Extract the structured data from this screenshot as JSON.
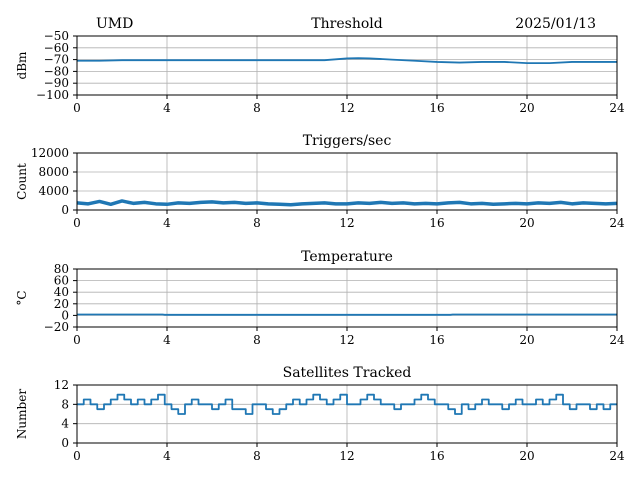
{
  "header": {
    "site": "UMD",
    "date": "2025/01/13"
  },
  "colors": {
    "series": "#1f77b4",
    "grid": "#b0b0b0",
    "axis": "#000000"
  },
  "chart_data": [
    {
      "type": "line",
      "title": "Threshold",
      "xlabel": "",
      "ylabel": "dBm",
      "xlim": [
        0,
        24
      ],
      "ylim": [
        -100,
        -50
      ],
      "xticks": [
        0,
        4,
        8,
        12,
        16,
        20,
        24
      ],
      "yticks": [
        -50,
        -60,
        -70,
        -80,
        -90,
        -100
      ],
      "ytick_labels": [
        "−50",
        "−60",
        "−70",
        "−80",
        "−90",
        "−100"
      ],
      "grid": true,
      "series": [
        {
          "x": [
            0,
            1,
            2,
            3,
            4,
            5,
            6,
            7,
            8,
            9,
            10,
            11,
            12,
            12.5,
            13,
            14,
            15,
            16,
            17,
            18,
            19,
            20,
            21,
            22,
            23,
            24
          ],
          "values": [
            -71,
            -71,
            -70.5,
            -70.5,
            -70.5,
            -70.5,
            -70.5,
            -70.5,
            -70.5,
            -70.5,
            -70.5,
            -70.5,
            -69,
            -68.8,
            -69,
            -70,
            -71,
            -72,
            -72.5,
            -72,
            -72,
            -73,
            -73,
            -72,
            -72,
            -72
          ]
        }
      ]
    },
    {
      "type": "line",
      "title": "Triggers/sec",
      "xlabel": "",
      "ylabel": "Count",
      "xlim": [
        0,
        24
      ],
      "ylim": [
        0,
        12000
      ],
      "xticks": [
        0,
        4,
        8,
        12,
        16,
        20,
        24
      ],
      "yticks": [
        0,
        4000,
        8000,
        12000
      ],
      "ytick_labels": [
        "0",
        "4000",
        "8000",
        "12000"
      ],
      "grid": true,
      "series": [
        {
          "x": [
            0,
            0.5,
            1,
            1.5,
            2,
            2.5,
            3,
            3.5,
            4,
            4.5,
            5,
            5.5,
            6,
            6.5,
            7,
            7.5,
            8,
            8.5,
            9,
            9.5,
            10,
            10.5,
            11,
            11.5,
            12,
            12.5,
            13,
            13.5,
            14,
            14.5,
            15,
            15.5,
            16,
            16.5,
            17,
            17.5,
            18,
            18.5,
            19,
            19.5,
            20,
            20.5,
            21,
            21.5,
            22,
            22.5,
            23,
            23.5,
            24
          ],
          "values": [
            1500,
            1300,
            1800,
            1200,
            1900,
            1400,
            1600,
            1300,
            1200,
            1500,
            1400,
            1600,
            1700,
            1500,
            1600,
            1400,
            1500,
            1300,
            1200,
            1100,
            1300,
            1400,
            1500,
            1300,
            1300,
            1500,
            1400,
            1600,
            1400,
            1500,
            1300,
            1400,
            1300,
            1500,
            1600,
            1300,
            1400,
            1200,
            1300,
            1400,
            1300,
            1500,
            1400,
            1600,
            1300,
            1500,
            1400,
            1300,
            1400
          ]
        }
      ]
    },
    {
      "type": "line",
      "title": "Temperature",
      "xlabel": "",
      "ylabel": "°C",
      "xlim": [
        0,
        24
      ],
      "ylim": [
        -20,
        80
      ],
      "xticks": [
        0,
        4,
        8,
        12,
        16,
        20,
        24
      ],
      "yticks": [
        -20,
        0,
        20,
        40,
        60,
        80
      ],
      "ytick_labels": [
        "−20",
        "0",
        "20",
        "40",
        "60",
        "80"
      ],
      "grid": true,
      "series": [
        {
          "x": [
            0,
            3.8,
            3.9,
            16.6,
            16.7,
            24
          ],
          "values": [
            1.5,
            1.5,
            1,
            1,
            1.5,
            1.5
          ]
        }
      ]
    },
    {
      "type": "line",
      "title": "Satellites Tracked",
      "xlabel": "",
      "ylabel": "Number",
      "xlim": [
        0,
        24
      ],
      "ylim": [
        0,
        12
      ],
      "xticks": [
        0,
        4,
        8,
        12,
        16,
        20,
        24
      ],
      "yticks": [
        0,
        4,
        8,
        12
      ],
      "ytick_labels": [
        "0",
        "4",
        "8",
        "12"
      ],
      "grid": true,
      "series": [
        {
          "x": [
            0,
            0.3,
            0.6,
            0.9,
            1.2,
            1.5,
            1.8,
            2.1,
            2.4,
            2.7,
            3.0,
            3.3,
            3.6,
            3.9,
            4.2,
            4.5,
            4.8,
            5.1,
            5.4,
            5.7,
            6.0,
            6.3,
            6.6,
            6.9,
            7.2,
            7.5,
            7.8,
            8.1,
            8.4,
            8.7,
            9.0,
            9.3,
            9.6,
            9.9,
            10.2,
            10.5,
            10.8,
            11.1,
            11.4,
            11.7,
            12.0,
            12.3,
            12.6,
            12.9,
            13.2,
            13.5,
            13.8,
            14.1,
            14.4,
            14.7,
            15.0,
            15.3,
            15.6,
            15.9,
            16.2,
            16.5,
            16.8,
            17.1,
            17.4,
            17.7,
            18.0,
            18.3,
            18.6,
            18.9,
            19.2,
            19.5,
            19.8,
            20.1,
            20.4,
            20.7,
            21.0,
            21.3,
            21.6,
            21.9,
            22.2,
            22.5,
            22.8,
            23.1,
            23.4,
            23.7,
            24.0
          ],
          "values": [
            8,
            9,
            8,
            7,
            8,
            9,
            10,
            9,
            8,
            9,
            8,
            9,
            10,
            8,
            7,
            6,
            8,
            9,
            8,
            8,
            7,
            8,
            9,
            7,
            7,
            6,
            8,
            8,
            7,
            6,
            7,
            8,
            9,
            8,
            9,
            10,
            9,
            8,
            9,
            10,
            8,
            8,
            9,
            10,
            9,
            8,
            8,
            7,
            8,
            8,
            9,
            10,
            9,
            8,
            8,
            7,
            6,
            8,
            7,
            8,
            9,
            8,
            8,
            7,
            8,
            9,
            8,
            8,
            9,
            8,
            9,
            10,
            8,
            7,
            8,
            8,
            7,
            8,
            7,
            8,
            8
          ]
        }
      ]
    }
  ]
}
